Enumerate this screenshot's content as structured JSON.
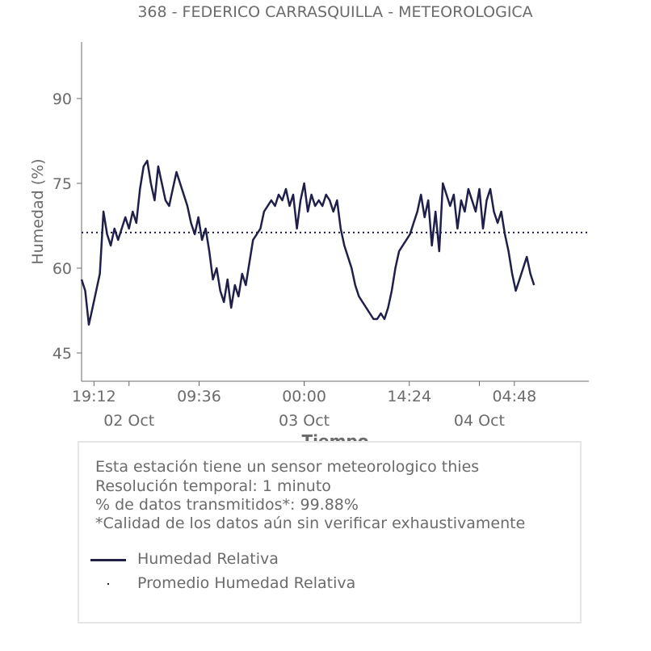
{
  "chart_data": {
    "type": "line",
    "title": "368 - FEDERICO CARRASQUILLA - METEOROLOGICA",
    "xlabel": "Tiempo",
    "ylabel": "Humedad (%)",
    "ylim": [
      40,
      100
    ],
    "yticks": [
      45,
      60,
      75,
      90
    ],
    "x_start": "2022-10-01T17:30",
    "x_end": "2022-10-04T15:00",
    "xticks_minor": [
      {
        "at": "2022-10-01T19:12",
        "label": "19:12"
      },
      {
        "at": "2022-10-02T09:36",
        "label": "09:36"
      },
      {
        "at": "2022-10-03T00:00",
        "label": "00:00"
      },
      {
        "at": "2022-10-03T14:24",
        "label": "14:24"
      },
      {
        "at": "2022-10-04T04:48",
        "label": "04:48"
      }
    ],
    "xticks_major": [
      {
        "at": "2022-10-02T00:00",
        "label": "02 Oct"
      },
      {
        "at": "2022-10-03T00:00",
        "label": "03 Oct"
      },
      {
        "at": "2022-10-04T00:00",
        "label": "04 Oct"
      }
    ],
    "grid": false,
    "series": [
      {
        "name": "Humedad Relativa",
        "color": "#1f1f4a",
        "style": "solid",
        "points": [
          [
            "2022-10-01T17:30",
            58
          ],
          [
            "2022-10-01T18:00",
            56
          ],
          [
            "2022-10-01T18:30",
            50
          ],
          [
            "2022-10-01T19:00",
            53
          ],
          [
            "2022-10-01T19:30",
            56
          ],
          [
            "2022-10-01T20:00",
            59
          ],
          [
            "2022-10-01T20:30",
            70
          ],
          [
            "2022-10-01T21:00",
            66
          ],
          [
            "2022-10-01T21:30",
            64
          ],
          [
            "2022-10-01T22:00",
            67
          ],
          [
            "2022-10-01T22:30",
            65
          ],
          [
            "2022-10-01T23:00",
            67
          ],
          [
            "2022-10-01T23:30",
            69
          ],
          [
            "2022-10-02T00:00",
            67
          ],
          [
            "2022-10-02T00:30",
            70
          ],
          [
            "2022-10-02T01:00",
            68
          ],
          [
            "2022-10-02T01:30",
            74
          ],
          [
            "2022-10-02T02:00",
            78
          ],
          [
            "2022-10-02T02:30",
            79
          ],
          [
            "2022-10-02T03:00",
            75
          ],
          [
            "2022-10-02T03:30",
            72
          ],
          [
            "2022-10-02T04:00",
            78
          ],
          [
            "2022-10-02T04:30",
            75
          ],
          [
            "2022-10-02T05:00",
            72
          ],
          [
            "2022-10-02T05:30",
            71
          ],
          [
            "2022-10-02T06:00",
            74
          ],
          [
            "2022-10-02T06:30",
            77
          ],
          [
            "2022-10-02T07:00",
            75
          ],
          [
            "2022-10-02T07:30",
            73
          ],
          [
            "2022-10-02T08:00",
            71
          ],
          [
            "2022-10-02T08:30",
            68
          ],
          [
            "2022-10-02T09:00",
            66
          ],
          [
            "2022-10-02T09:30",
            69
          ],
          [
            "2022-10-02T10:00",
            65
          ],
          [
            "2022-10-02T10:30",
            67
          ],
          [
            "2022-10-02T11:00",
            63
          ],
          [
            "2022-10-02T11:30",
            58
          ],
          [
            "2022-10-02T12:00",
            60
          ],
          [
            "2022-10-02T12:30",
            56
          ],
          [
            "2022-10-02T13:00",
            54
          ],
          [
            "2022-10-02T13:30",
            58
          ],
          [
            "2022-10-02T14:00",
            53
          ],
          [
            "2022-10-02T14:30",
            57
          ],
          [
            "2022-10-02T15:00",
            55
          ],
          [
            "2022-10-02T15:30",
            59
          ],
          [
            "2022-10-02T16:00",
            57
          ],
          [
            "2022-10-02T16:30",
            61
          ],
          [
            "2022-10-02T17:00",
            65
          ],
          [
            "2022-10-02T17:30",
            66
          ],
          [
            "2022-10-02T18:00",
            67
          ],
          [
            "2022-10-02T18:30",
            70
          ],
          [
            "2022-10-02T19:00",
            71
          ],
          [
            "2022-10-02T19:30",
            72
          ],
          [
            "2022-10-02T20:00",
            71
          ],
          [
            "2022-10-02T20:30",
            73
          ],
          [
            "2022-10-02T21:00",
            72
          ],
          [
            "2022-10-02T21:30",
            74
          ],
          [
            "2022-10-02T22:00",
            71
          ],
          [
            "2022-10-02T22:30",
            73
          ],
          [
            "2022-10-02T23:00",
            67
          ],
          [
            "2022-10-02T23:30",
            72
          ],
          [
            "2022-10-03T00:00",
            75
          ],
          [
            "2022-10-03T00:30",
            70
          ],
          [
            "2022-10-03T01:00",
            73
          ],
          [
            "2022-10-03T01:30",
            71
          ],
          [
            "2022-10-03T02:00",
            72
          ],
          [
            "2022-10-03T02:30",
            71
          ],
          [
            "2022-10-03T03:00",
            73
          ],
          [
            "2022-10-03T03:30",
            72
          ],
          [
            "2022-10-03T04:00",
            70
          ],
          [
            "2022-10-03T04:30",
            72
          ],
          [
            "2022-10-03T05:00",
            67
          ],
          [
            "2022-10-03T05:30",
            64
          ],
          [
            "2022-10-03T06:00",
            62
          ],
          [
            "2022-10-03T06:30",
            60
          ],
          [
            "2022-10-03T07:00",
            57
          ],
          [
            "2022-10-03T07:30",
            55
          ],
          [
            "2022-10-03T08:00",
            54
          ],
          [
            "2022-10-03T08:30",
            53
          ],
          [
            "2022-10-03T09:00",
            52
          ],
          [
            "2022-10-03T09:30",
            51
          ],
          [
            "2022-10-03T10:00",
            51
          ],
          [
            "2022-10-03T10:30",
            52
          ],
          [
            "2022-10-03T11:00",
            51
          ],
          [
            "2022-10-03T11:30",
            53
          ],
          [
            "2022-10-03T12:00",
            56
          ],
          [
            "2022-10-03T12:30",
            60
          ],
          [
            "2022-10-03T13:00",
            63
          ],
          [
            "2022-10-03T13:30",
            64
          ],
          [
            "2022-10-03T14:00",
            65
          ],
          [
            "2022-10-03T14:30",
            66
          ],
          [
            "2022-10-03T15:00",
            68
          ],
          [
            "2022-10-03T15:30",
            70
          ],
          [
            "2022-10-03T16:00",
            73
          ],
          [
            "2022-10-03T16:30",
            69
          ],
          [
            "2022-10-03T17:00",
            72
          ],
          [
            "2022-10-03T17:30",
            64
          ],
          [
            "2022-10-03T18:00",
            70
          ],
          [
            "2022-10-03T18:30",
            63
          ],
          [
            "2022-10-03T19:00",
            75
          ],
          [
            "2022-10-03T19:30",
            73
          ],
          [
            "2022-10-03T20:00",
            71
          ],
          [
            "2022-10-03T20:30",
            73
          ],
          [
            "2022-10-03T21:00",
            67
          ],
          [
            "2022-10-03T21:30",
            72
          ],
          [
            "2022-10-03T22:00",
            70
          ],
          [
            "2022-10-03T22:30",
            74
          ],
          [
            "2022-10-03T23:00",
            72
          ],
          [
            "2022-10-03T23:30",
            70
          ],
          [
            "2022-10-04T00:00",
            74
          ],
          [
            "2022-10-04T00:30",
            67
          ],
          [
            "2022-10-04T01:00",
            72
          ],
          [
            "2022-10-04T01:30",
            74
          ],
          [
            "2022-10-04T02:00",
            70
          ],
          [
            "2022-10-04T02:30",
            68
          ],
          [
            "2022-10-04T03:00",
            70
          ],
          [
            "2022-10-04T03:30",
            66
          ],
          [
            "2022-10-04T04:00",
            63
          ],
          [
            "2022-10-04T04:30",
            59
          ],
          [
            "2022-10-04T05:00",
            56
          ],
          [
            "2022-10-04T05:30",
            58
          ],
          [
            "2022-10-04T06:00",
            60
          ],
          [
            "2022-10-04T06:30",
            62
          ],
          [
            "2022-10-04T07:00",
            59
          ],
          [
            "2022-10-04T07:30",
            57
          ]
        ]
      },
      {
        "name": "Promedio Humedad Relativa",
        "color": "#1f1f4a",
        "style": "dotted",
        "value": 66.3
      }
    ]
  },
  "info": {
    "line1": "Esta estación tiene un sensor meteorologico thies",
    "line2": "Resolución temporal: 1 minuto",
    "line3": "% de datos transmitidos*: 99.88%",
    "line4": "*Calidad de los datos aún sin verificar exhaustivamente"
  },
  "legend": {
    "series_label": "Humedad Relativa",
    "mean_label": "Promedio Humedad Relativa"
  }
}
